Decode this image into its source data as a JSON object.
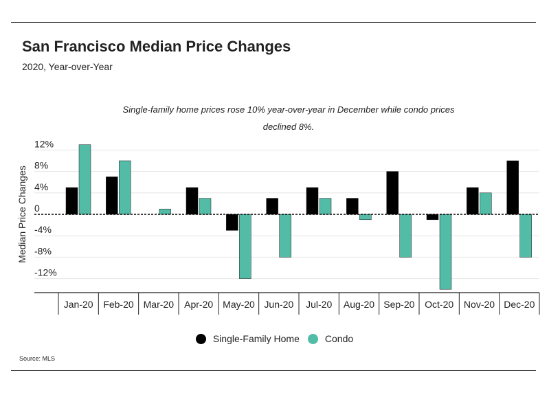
{
  "header": {
    "title": "San Francisco Median Price Changes",
    "subtitle": "2020, Year-over-Year"
  },
  "annotation": {
    "line1": "Single-family home prices rose 10% year-over-year in December while condo prices",
    "line2": "declined 8%."
  },
  "source": "Source:  MLS",
  "colors": {
    "single_family": "#000000",
    "condo": "#52bca7",
    "grid": "#e6e6e6",
    "axis": "#222222"
  },
  "chart_data": {
    "type": "bar",
    "title": "San Francisco Median Price Changes",
    "subtitle": "2020, Year-over-Year",
    "xlabel": "",
    "ylabel": "Median Price Changes",
    "ylim": [
      -14,
      13
    ],
    "yticks": [
      12,
      8,
      4,
      0,
      -4,
      -8,
      -12
    ],
    "ytick_labels": [
      "12%",
      "8%",
      "4%",
      "0",
      "-4%",
      "-8%",
      "-12%"
    ],
    "grid": true,
    "legend_position": "bottom",
    "categories": [
      "Jan-20",
      "Feb-20",
      "Mar-20",
      "Apr-20",
      "May-20",
      "Jun-20",
      "Jul-20",
      "Aug-20",
      "Sep-20",
      "Oct-20",
      "Nov-20",
      "Dec-20"
    ],
    "series": [
      {
        "name": "Single-Family Home",
        "color": "#000000",
        "values": [
          5,
          7,
          0,
          5,
          -3,
          3,
          5,
          3,
          8,
          -1,
          5,
          10
        ]
      },
      {
        "name": "Condo",
        "color": "#52bca7",
        "values": [
          13,
          10,
          1,
          3,
          -12,
          -8,
          3,
          -1,
          -8,
          -14,
          4,
          -8
        ]
      }
    ]
  }
}
